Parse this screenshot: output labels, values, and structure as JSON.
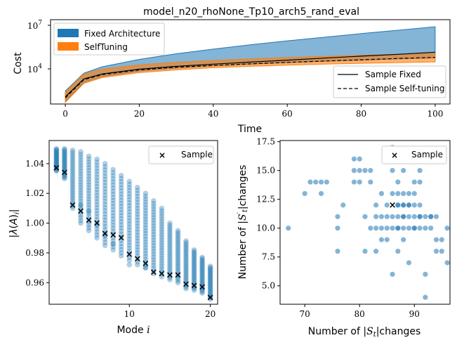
{
  "chart_data": [
    {
      "type": "area",
      "title": "model_n20_rhoNone_Tp10_arch5_rand_eval",
      "xlabel": "Time",
      "ylabel": "Cost",
      "yscale": "log",
      "xlim": [
        -4,
        104
      ],
      "x_ticks": [
        "0",
        "20",
        "40",
        "60",
        "80",
        "100"
      ],
      "y_ticks": [
        "10^4",
        "10^7"
      ],
      "series": [
        {
          "name": "Fixed Architecture",
          "kind": "band",
          "color": "#1f77b4",
          "x": [
            0,
            5,
            10,
            20,
            30,
            40,
            50,
            60,
            70,
            80,
            90,
            100
          ],
          "lower": [
            60,
            1200,
            3000,
            7000,
            11000,
            16000,
            21000,
            27000,
            33000,
            40000,
            48000,
            56000
          ],
          "upper": [
            300,
            5000,
            14000,
            45000,
            110000,
            230000,
            450000,
            850000,
            1500000,
            2700000,
            4600000,
            8000000
          ]
        },
        {
          "name": "SelfTuning",
          "kind": "band",
          "color": "#ff7f0e",
          "x": [
            0,
            5,
            10,
            20,
            30,
            40,
            50,
            60,
            70,
            80,
            90,
            100
          ],
          "lower": [
            50,
            1000,
            2500,
            5500,
            8500,
            12000,
            15000,
            18000,
            21000,
            24000,
            27000,
            30000
          ],
          "upper": [
            250,
            4500,
            9500,
            19000,
            28000,
            38000,
            48000,
            60000,
            72000,
            85000,
            100000,
            115000
          ]
        },
        {
          "name": "Sample Fixed",
          "kind": "line",
          "style": "solid",
          "x": [
            0,
            5,
            10,
            20,
            30,
            40,
            50,
            60,
            70,
            80,
            90,
            100
          ],
          "values": [
            120,
            2000,
            4500,
            9500,
            15000,
            21000,
            29000,
            40000,
            55000,
            75000,
            100000,
            140000
          ]
        },
        {
          "name": "Sample Self-tuning",
          "kind": "line",
          "style": "dashed",
          "x": [
            0,
            5,
            10,
            20,
            30,
            40,
            50,
            60,
            70,
            80,
            90,
            100
          ],
          "values": [
            100,
            1800,
            4000,
            8500,
            13000,
            17000,
            22000,
            28000,
            35000,
            42000,
            52000,
            62000
          ]
        }
      ]
    },
    {
      "type": "scatter",
      "xlabel": "Mode i",
      "ylabel": "|λ(A)_i|",
      "xlim": [
        0.1,
        20.9
      ],
      "ylim": [
        0.9455,
        1.0555
      ],
      "x_ticks": [
        10,
        20
      ],
      "y_ticks": [
        "0.96",
        "0.98",
        "1.00",
        "1.02",
        "1.04"
      ],
      "cloud_color": "#1f77b4",
      "sample_name": "Sample",
      "sample_x": [
        1,
        2,
        3,
        4,
        5,
        6,
        7,
        8,
        9,
        10,
        11,
        12,
        13,
        14,
        15,
        16,
        17,
        18,
        19,
        20
      ],
      "sample_y": [
        1.037,
        1.034,
        1.012,
        1.008,
        1.002,
        1.0,
        0.993,
        0.992,
        0.99,
        0.979,
        0.976,
        0.973,
        0.967,
        0.966,
        0.965,
        0.965,
        0.959,
        0.958,
        0.957,
        0.95
      ],
      "cloud_x": [
        1,
        2,
        3,
        4,
        5,
        6,
        7,
        8,
        9,
        10,
        11,
        12,
        13,
        14,
        15,
        16,
        17,
        18,
        19,
        20
      ],
      "cloud_low": [
        1.035,
        1.03,
        1.01,
        1.0,
        0.995,
        0.99,
        0.985,
        0.982,
        0.978,
        0.975,
        0.972,
        0.97,
        0.966,
        0.964,
        0.962,
        0.96,
        0.956,
        0.955,
        0.953,
        0.949
      ],
      "cloud_high": [
        1.05,
        1.05,
        1.049,
        1.048,
        1.045,
        1.043,
        1.04,
        1.036,
        1.032,
        1.028,
        1.024,
        1.02,
        1.015,
        1.01,
        1.0,
        0.995,
        0.988,
        0.982,
        0.977,
        0.971
      ],
      "cloud_outliers": [
        [
          4,
          1.012
        ],
        [
          5,
          1.008
        ],
        [
          6,
          0.999
        ],
        [
          7,
          0.992
        ],
        [
          8,
          0.986
        ],
        [
          10,
          0.972
        ],
        [
          12,
          0.97
        ]
      ]
    },
    {
      "type": "scatter",
      "xlabel": "Number of |S_t| changes",
      "ylabel": "Number of |S'_t| changes",
      "xlim": [
        65.5,
        96.5
      ],
      "ylim": [
        3.4,
        17.6
      ],
      "x_ticks": [
        70,
        80,
        90
      ],
      "y_ticks": [
        "5.0",
        "7.5",
        "10.0",
        "12.5",
        "15.0",
        "17.5"
      ],
      "color": "#1f77b4",
      "sample_name": "Sample",
      "sample_point": [
        86,
        12
      ],
      "points": [
        [
          67,
          10
        ],
        [
          70,
          13
        ],
        [
          71,
          14
        ],
        [
          72,
          14
        ],
        [
          73,
          13
        ],
        [
          73,
          14
        ],
        [
          74,
          14
        ],
        [
          76,
          8
        ],
        [
          76,
          10
        ],
        [
          76,
          11
        ],
        [
          77,
          12
        ],
        [
          79,
          14
        ],
        [
          79,
          15
        ],
        [
          79,
          16
        ],
        [
          80,
          14
        ],
        [
          80,
          15
        ],
        [
          80,
          16
        ],
        [
          81,
          8
        ],
        [
          81,
          15
        ],
        [
          81,
          11
        ],
        [
          82,
          10
        ],
        [
          82,
          14
        ],
        [
          82,
          15
        ],
        [
          83,
          8
        ],
        [
          83,
          10
        ],
        [
          83,
          11
        ],
        [
          83,
          12
        ],
        [
          84,
          10
        ],
        [
          84,
          11
        ],
        [
          84,
          13
        ],
        [
          85,
          12
        ],
        [
          85,
          9
        ],
        [
          85,
          10
        ],
        [
          86,
          6
        ],
        [
          86,
          11
        ],
        [
          86,
          13
        ],
        [
          86,
          15
        ],
        [
          86,
          17
        ],
        [
          87,
          8
        ],
        [
          87,
          10
        ],
        [
          87,
          11
        ],
        [
          87,
          12
        ],
        [
          87,
          13
        ],
        [
          87,
          14
        ],
        [
          87,
          16
        ],
        [
          88,
          9
        ],
        [
          88,
          10
        ],
        [
          88,
          11
        ],
        [
          88,
          12
        ],
        [
          88,
          13
        ],
        [
          88,
          15
        ],
        [
          88,
          16
        ],
        [
          89,
          7
        ],
        [
          89,
          10
        ],
        [
          89,
          11
        ],
        [
          89,
          12
        ],
        [
          89,
          13
        ],
        [
          90,
          10
        ],
        [
          90,
          11
        ],
        [
          90,
          12
        ],
        [
          90,
          13
        ],
        [
          90,
          14
        ],
        [
          91,
          11
        ],
        [
          91,
          10
        ],
        [
          91,
          14
        ],
        [
          91,
          12
        ],
        [
          91,
          15
        ],
        [
          92,
          4
        ],
        [
          92,
          6
        ],
        [
          92,
          10
        ],
        [
          92,
          11
        ],
        [
          93,
          10
        ],
        [
          93,
          11
        ],
        [
          94,
          8
        ],
        [
          94,
          11
        ],
        [
          95,
          8
        ],
        [
          95,
          9
        ],
        [
          96,
          7
        ],
        [
          96,
          10
        ],
        [
          87,
          10
        ],
        [
          88,
          12
        ],
        [
          89,
          12
        ],
        [
          90,
          10
        ],
        [
          91,
          11
        ],
        [
          93,
          11
        ],
        [
          94,
          9
        ],
        [
          84,
          9
        ],
        [
          85,
          11
        ],
        [
          86,
          10
        ],
        [
          87,
          12
        ],
        [
          88,
          11
        ]
      ]
    }
  ]
}
